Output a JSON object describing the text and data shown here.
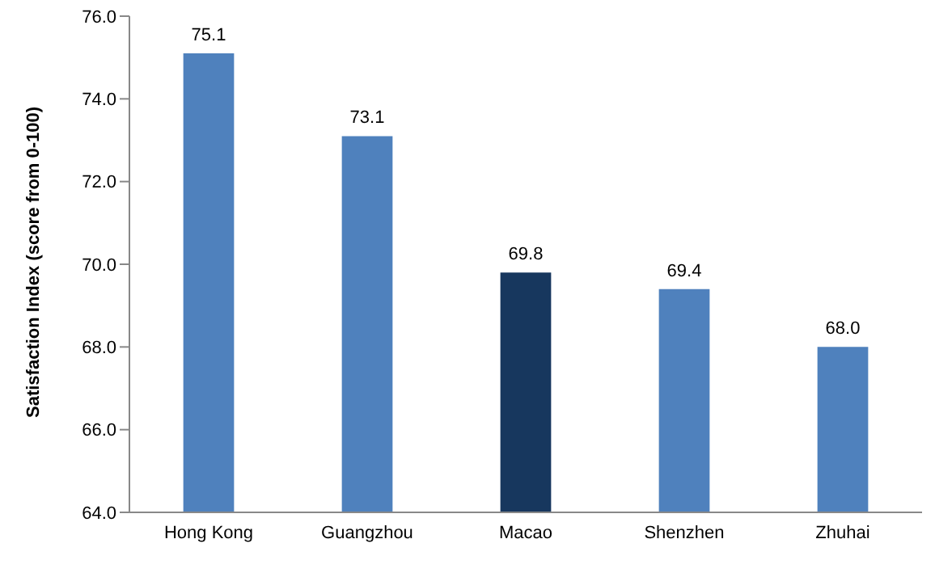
{
  "chart_data": {
    "type": "bar",
    "ylabel": "Satisfaction Index (score from 0-100)",
    "categories": [
      "Hong Kong",
      "Guangzhou",
      "Macao",
      "Shenzhen",
      "Zhuhai"
    ],
    "values": [
      75.1,
      73.1,
      69.8,
      69.4,
      68.0
    ],
    "colors": [
      "#4f81bd",
      "#4f81bd",
      "#17375e",
      "#4f81bd",
      "#4f81bd"
    ],
    "value_labels": [
      "75.1",
      "73.1",
      "69.8",
      "69.4",
      "68.0"
    ],
    "ylim": [
      64,
      76
    ],
    "yticks": [
      {
        "value": 64,
        "label": "64.0"
      },
      {
        "value": 66,
        "label": "66.0"
      },
      {
        "value": 68,
        "label": "68.0"
      },
      {
        "value": 70,
        "label": "70.0"
      },
      {
        "value": 72,
        "label": "72.0"
      },
      {
        "value": 74,
        "label": "74.0"
      },
      {
        "value": 76,
        "label": "76.0"
      }
    ],
    "grid": false,
    "legend": false
  }
}
